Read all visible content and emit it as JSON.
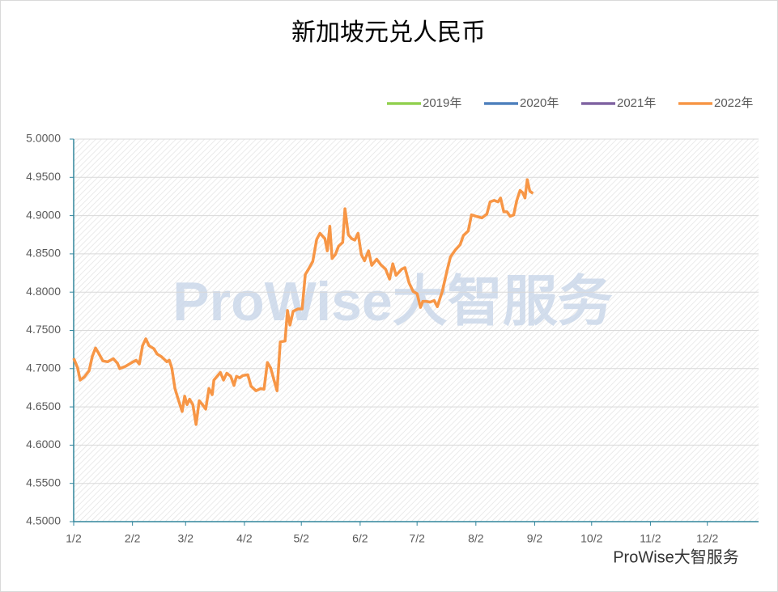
{
  "chart_data": {
    "type": "line",
    "title": "新加坡元兑人民币",
    "watermark": "ProWise大智服务",
    "source": "ProWise大智服务",
    "legend": "top-right",
    "grid": true,
    "xlim": [
      0,
      361
    ],
    "xticks": [
      {
        "value": 0,
        "label": "1/2"
      },
      {
        "value": 31,
        "label": "2/2"
      },
      {
        "value": 59,
        "label": "3/2"
      },
      {
        "value": 90,
        "label": "4/2"
      },
      {
        "value": 120,
        "label": "5/2"
      },
      {
        "value": 151,
        "label": "6/2"
      },
      {
        "value": 181,
        "label": "7/2"
      },
      {
        "value": 212,
        "label": "8/2"
      },
      {
        "value": 243,
        "label": "9/2"
      },
      {
        "value": 273,
        "label": "10/2"
      },
      {
        "value": 304,
        "label": "11/2"
      },
      {
        "value": 334,
        "label": "12/2"
      }
    ],
    "ylim": [
      4.5,
      5.0
    ],
    "yticks": [
      {
        "value": 4.5,
        "label": "4.5000"
      },
      {
        "value": 4.55,
        "label": "4.5500"
      },
      {
        "value": 4.6,
        "label": "4.6000"
      },
      {
        "value": 4.65,
        "label": "4.6500"
      },
      {
        "value": 4.7,
        "label": "4.7000"
      },
      {
        "value": 4.75,
        "label": "4.7500"
      },
      {
        "value": 4.8,
        "label": "4.8000"
      },
      {
        "value": 4.85,
        "label": "4.8500"
      },
      {
        "value": 4.9,
        "label": "4.9000"
      },
      {
        "value": 4.95,
        "label": "4.9500"
      },
      {
        "value": 5.0,
        "label": "5.0000"
      }
    ],
    "series": [
      {
        "name": "2019年",
        "color": "#92d050",
        "x": [],
        "values": []
      },
      {
        "name": "2020年",
        "color": "#4f81bd",
        "x": [],
        "values": []
      },
      {
        "name": "2021年",
        "color": "#8064a2",
        "x": [],
        "values": []
      },
      {
        "name": "2022年",
        "color": "#f79646",
        "x": [
          0,
          2.1,
          3.4,
          5.6,
          8.1,
          9.8,
          11.5,
          13.2,
          15.4,
          17.9,
          20.9,
          23.1,
          24.3,
          27.3,
          30.7,
          32.9,
          34.6,
          36.3,
          38.0,
          39.7,
          42.3,
          44.0,
          46.1,
          47.8,
          49.1,
          50.4,
          51.7,
          53.4,
          55.1,
          57.2,
          58.5,
          59.8,
          61.1,
          62.8,
          64.5,
          66.2,
          67.9,
          69.6,
          71.3,
          73.0,
          73.9,
          75.6,
          77.3,
          79.0,
          80.7,
          82.8,
          84.5,
          85.8,
          87.5,
          89.2,
          91.8,
          93.5,
          96.1,
          98.6,
          100.3,
          102.1,
          103.8,
          105.5,
          107.2,
          108.9,
          111.4,
          112.7,
          114.0,
          115.7,
          118.3,
          120.4,
          122.1,
          123.8,
          126.0,
          128.1,
          129.8,
          132.4,
          133.7,
          135.0,
          136.2,
          137.9,
          139.6,
          141.8,
          143.0,
          144.8,
          146.5,
          148.2,
          149.9,
          151.6,
          153.3,
          155.4,
          157.1,
          159.7,
          161.8,
          164.4,
          166.5,
          168.2,
          169.9,
          172.9,
          174.6,
          176.8,
          178.9,
          181.0,
          182.8,
          184.0,
          185.7,
          187.9,
          190.0,
          191.7,
          194.3,
          196.8,
          198.6,
          201.1,
          203.7,
          205.4,
          208.0,
          209.7,
          212.2,
          215.2,
          217.8,
          219.5,
          221.6,
          223.7,
          225.0,
          226.7,
          228.4,
          230.1,
          231.9,
          233.6,
          235.3,
          236.6,
          237.9,
          239.1,
          240.4,
          242.1
        ],
        "values": [
          4.7135,
          4.701,
          4.685,
          4.689,
          4.697,
          4.716,
          4.727,
          4.72,
          4.71,
          4.709,
          4.713,
          4.707,
          4.7,
          4.703,
          4.708,
          4.711,
          4.706,
          4.73,
          4.739,
          4.73,
          4.726,
          4.719,
          4.716,
          4.712,
          4.709,
          4.711,
          4.701,
          4.674,
          4.66,
          4.644,
          4.664,
          4.653,
          4.66,
          4.653,
          4.627,
          4.658,
          4.653,
          4.647,
          4.674,
          4.666,
          4.685,
          4.69,
          4.695,
          4.685,
          4.694,
          4.69,
          4.678,
          4.69,
          4.688,
          4.691,
          4.692,
          4.677,
          4.671,
          4.674,
          4.673,
          4.708,
          4.701,
          4.686,
          4.671,
          4.735,
          4.736,
          4.776,
          4.757,
          4.775,
          4.778,
          4.778,
          4.823,
          4.83,
          4.84,
          4.869,
          4.877,
          4.87,
          4.854,
          4.886,
          4.844,
          4.849,
          4.86,
          4.865,
          4.909,
          4.875,
          4.87,
          4.868,
          4.877,
          4.849,
          4.841,
          4.854,
          4.835,
          4.843,
          4.836,
          4.83,
          4.817,
          4.837,
          4.822,
          4.83,
          4.832,
          4.812,
          4.801,
          4.798,
          4.78,
          4.788,
          4.788,
          4.787,
          4.789,
          4.781,
          4.801,
          4.828,
          4.846,
          4.855,
          4.862,
          4.874,
          4.88,
          4.901,
          4.899,
          4.897,
          4.902,
          4.918,
          4.92,
          4.918,
          4.923,
          4.905,
          4.905,
          4.899,
          4.901,
          4.92,
          4.933,
          4.93,
          4.923,
          4.947,
          4.932,
          4.929
        ]
      }
    ]
  }
}
